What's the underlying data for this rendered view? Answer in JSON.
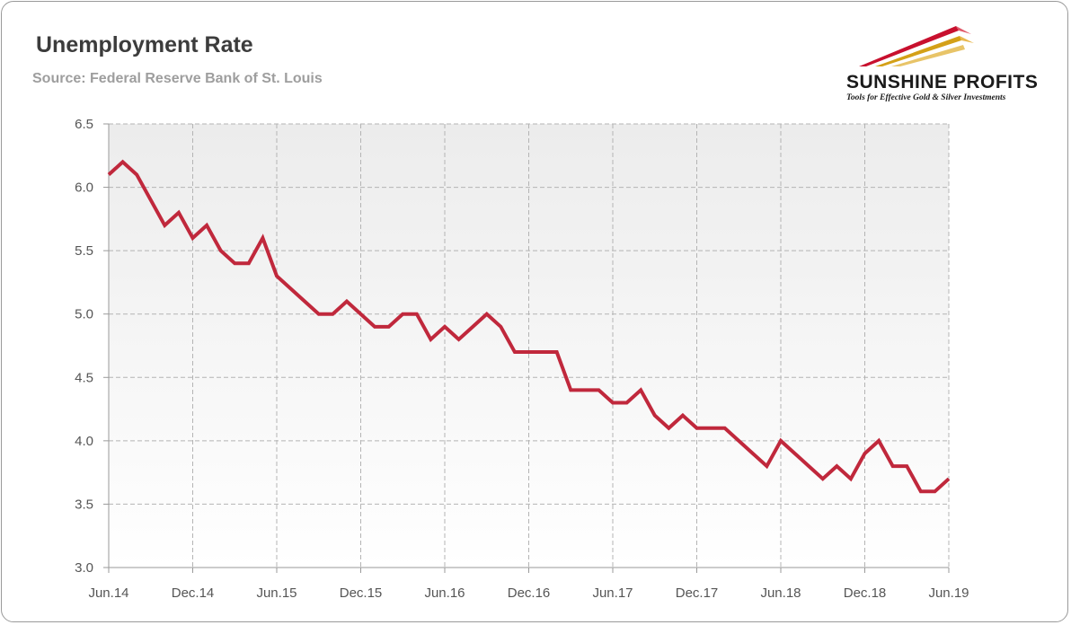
{
  "title": "Unemployment Rate",
  "subtitle": "Source: Federal Reserve Bank of St. Louis",
  "logo": {
    "name": "SUNSHINE PROFITS",
    "tagline": "Tools for Effective Gold & Silver Investments",
    "colors": [
      "#c8102e",
      "#d4a017",
      "#e8c468"
    ]
  },
  "chart_data": {
    "type": "line",
    "title": "Unemployment Rate",
    "subtitle": "Source: Federal Reserve Bank of St. Louis",
    "xlabel": "",
    "ylabel": "",
    "ylim": [
      3.0,
      6.5
    ],
    "yticks": [
      "3.0",
      "3.5",
      "4.0",
      "4.5",
      "5.0",
      "5.5",
      "6.0",
      "6.5"
    ],
    "xticks": [
      "Jun.14",
      "Dec.14",
      "Jun.15",
      "Dec.15",
      "Jun.16",
      "Dec.16",
      "Jun.17",
      "Dec.17",
      "Jun.18",
      "Dec.18",
      "Jun.19"
    ],
    "grid": true,
    "line_color": "#c0283c",
    "series": [
      {
        "values": [
          6.1,
          6.2,
          6.1,
          5.9,
          5.7,
          5.8,
          5.6,
          5.7,
          5.5,
          5.4,
          5.4,
          5.6,
          5.3,
          5.2,
          5.1,
          5.0,
          5.0,
          5.1,
          5.0,
          4.9,
          4.9,
          5.0,
          5.0,
          4.8,
          4.9,
          4.8,
          4.9,
          5.0,
          4.9,
          4.7,
          4.7,
          4.7,
          4.7,
          4.4,
          4.4,
          4.4,
          4.3,
          4.3,
          4.4,
          4.2,
          4.1,
          4.2,
          4.1,
          4.1,
          4.1,
          4.0,
          3.9,
          3.8,
          4.0,
          3.9,
          3.8,
          3.7,
          3.8,
          3.7,
          3.9,
          4.0,
          3.8,
          3.8,
          3.6,
          3.6,
          3.7
        ]
      }
    ]
  }
}
